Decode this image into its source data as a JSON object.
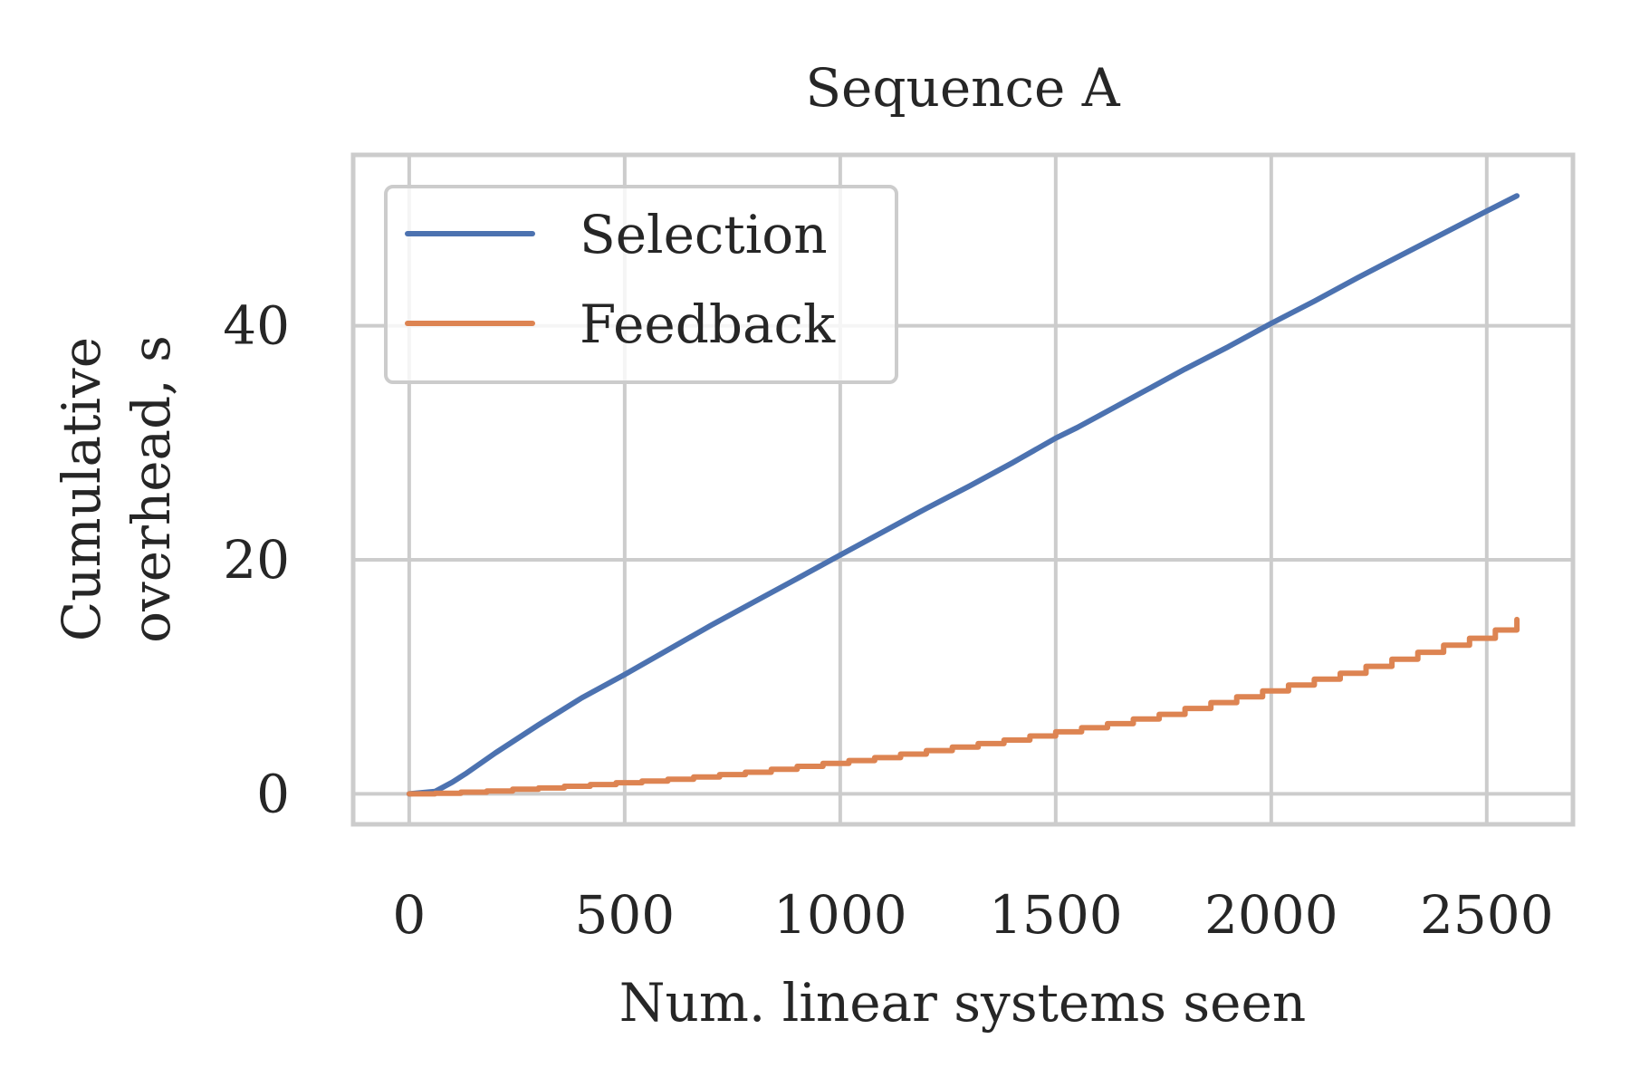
{
  "chart_data": {
    "type": "line",
    "title": "Sequence A",
    "xlabel": "Num. linear systems seen",
    "ylabel_lines": [
      "Cumulative",
      "overhead, s"
    ],
    "xlim": [
      -130,
      2700
    ],
    "ylim": [
      -2.6,
      54.6
    ],
    "xticks": [
      0,
      500,
      1000,
      1500,
      2000,
      2500
    ],
    "yticks": [
      0,
      20,
      40
    ],
    "grid": true,
    "legend": {
      "position": "top-left",
      "entries": [
        "Selection",
        "Feedback"
      ]
    },
    "series": [
      {
        "name": "Selection",
        "color": "#4C72B0",
        "step": false,
        "x": [
          0,
          60,
          100,
          130,
          200,
          300,
          400,
          500,
          600,
          700,
          800,
          900,
          1000,
          1100,
          1200,
          1300,
          1400,
          1500,
          1550,
          1600,
          1700,
          1800,
          1900,
          2000,
          2100,
          2200,
          2300,
          2400,
          2500,
          2570
        ],
        "y": [
          0,
          0.2,
          1.0,
          1.7,
          3.5,
          5.9,
          8.2,
          10.2,
          12.3,
          14.4,
          16.4,
          18.4,
          20.4,
          22.4,
          24.4,
          26.3,
          28.3,
          30.4,
          31.3,
          32.3,
          34.3,
          36.3,
          38.2,
          40.2,
          42.1,
          44.1,
          46.0,
          47.9,
          49.8,
          51.1
        ]
      },
      {
        "name": "Feedback",
        "color": "#DD8452",
        "step": true,
        "x": [
          0,
          60,
          120,
          180,
          240,
          300,
          360,
          420,
          480,
          540,
          600,
          660,
          720,
          780,
          840,
          900,
          960,
          1020,
          1080,
          1140,
          1200,
          1260,
          1320,
          1380,
          1440,
          1500,
          1560,
          1620,
          1680,
          1740,
          1800,
          1860,
          1920,
          1980,
          2040,
          2100,
          2160,
          2220,
          2280,
          2340,
          2400,
          2460,
          2520,
          2570
        ],
        "y": [
          0,
          0.05,
          0.15,
          0.25,
          0.4,
          0.5,
          0.65,
          0.8,
          0.95,
          1.1,
          1.25,
          1.45,
          1.65,
          1.85,
          2.1,
          2.35,
          2.6,
          2.85,
          3.1,
          3.4,
          3.7,
          4.0,
          4.3,
          4.6,
          4.95,
          5.3,
          5.65,
          6.0,
          6.4,
          6.8,
          7.3,
          7.8,
          8.3,
          8.8,
          9.3,
          9.8,
          10.3,
          10.9,
          11.5,
          12.1,
          12.7,
          13.3,
          14.0,
          14.9
        ]
      }
    ]
  }
}
